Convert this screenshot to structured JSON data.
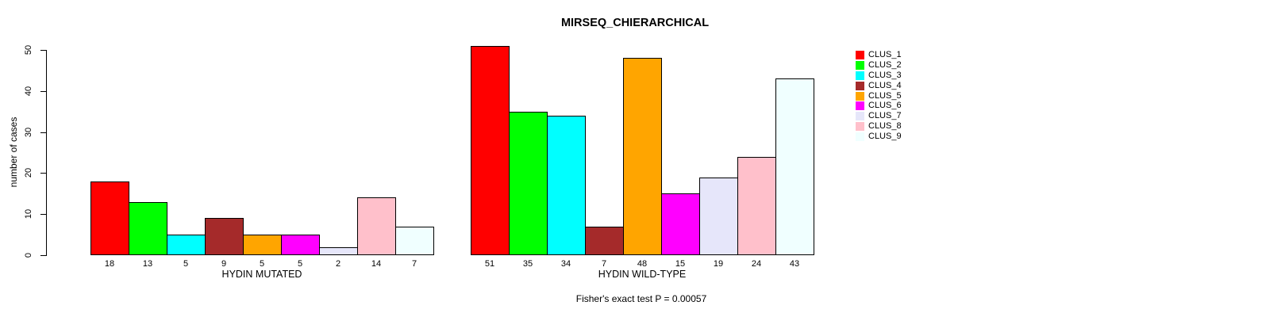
{
  "chart_data": {
    "type": "bar",
    "title": "MIRSEQ_CHIERARCHICAL",
    "ylabel": "number of cases",
    "ylim": [
      0,
      50
    ],
    "yticks": [
      0,
      10,
      20,
      30,
      40,
      50
    ],
    "grid": false,
    "legend_position": "right",
    "categories": [
      "HYDIN MUTATED",
      "HYDIN WILD-TYPE"
    ],
    "series": [
      {
        "name": "CLUS_1",
        "color": "#FF0000",
        "values": [
          18,
          51
        ]
      },
      {
        "name": "CLUS_2",
        "color": "#00FF00",
        "values": [
          13,
          35
        ]
      },
      {
        "name": "CLUS_3",
        "color": "#00FFFF",
        "values": [
          5,
          34
        ]
      },
      {
        "name": "CLUS_4",
        "color": "#A52A2A",
        "values": [
          9,
          7
        ]
      },
      {
        "name": "CLUS_5",
        "color": "#FFA500",
        "values": [
          5,
          48
        ]
      },
      {
        "name": "CLUS_6",
        "color": "#FF00FF",
        "values": [
          5,
          15
        ]
      },
      {
        "name": "CLUS_7",
        "color": "#E6E6FA",
        "values": [
          2,
          19
        ]
      },
      {
        "name": "CLUS_8",
        "color": "#FFC0CB",
        "values": [
          14,
          24
        ]
      },
      {
        "name": "CLUS_9",
        "color": "#F0FFFF",
        "values": [
          7,
          43
        ]
      }
    ],
    "annotation": "Fisher's exact test P = 0.00057"
  }
}
